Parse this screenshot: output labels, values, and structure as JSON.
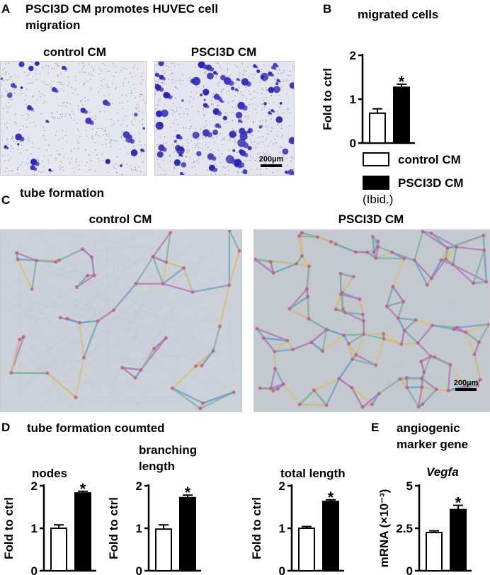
{
  "panelA": {
    "letter": "A",
    "title_line1": "PSCI3D CM promotes HUVEC cell",
    "title_line2": "migration",
    "left_label": "control CM",
    "right_label": "PSCI3D CM",
    "scale_text": "200µm"
  },
  "panelB": {
    "letter": "B",
    "title": "migrated cells",
    "legend": {
      "control": "control CM",
      "treated": "PSCI3D CM",
      "note": "(Ibid.)"
    }
  },
  "panelC": {
    "letter": "C",
    "title": "tube formation",
    "left_label": "control CM",
    "right_label": "PSCI3D CM",
    "scale_text": "200µm"
  },
  "panelD": {
    "letter": "D",
    "title": "tube formation coumted"
  },
  "panelE": {
    "letter": "E",
    "title_line1": "angiogenic",
    "title_line2": "marker gene"
  },
  "colors": {
    "control_fill": "#ffffff",
    "treated_fill": "#000000"
  },
  "chart_data": [
    {
      "id": "migrated",
      "type": "bar",
      "title": "",
      "ylabel": "Fold to ctrl",
      "categories": [
        "control CM",
        "PSCI3D CM"
      ],
      "values": [
        0.68,
        1.27
      ],
      "errors": [
        0.1,
        0.07
      ],
      "ylim": [
        0,
        2
      ],
      "yticks": [
        "0",
        "1",
        "2"
      ],
      "star": "*"
    },
    {
      "id": "nodes",
      "type": "bar",
      "title": "nodes",
      "ylabel": "Fold to ctrl",
      "categories": [
        "control CM",
        "PSCI3D CM"
      ],
      "values": [
        1.0,
        1.83
      ],
      "errors": [
        0.08,
        0.04
      ],
      "ylim": [
        0,
        2
      ],
      "yticks": [
        "0",
        "1",
        "2"
      ],
      "star": "*"
    },
    {
      "id": "branching",
      "type": "bar",
      "title": "branching length",
      "title_line1": "branching",
      "title_line2": "length",
      "ylabel": "Fold to ctrl",
      "categories": [
        "control CM",
        "PSCI3D CM"
      ],
      "values": [
        0.98,
        1.72
      ],
      "errors": [
        0.1,
        0.06
      ],
      "ylim": [
        0,
        2
      ],
      "yticks": [
        "0",
        "1",
        "2"
      ],
      "star": "*"
    },
    {
      "id": "total",
      "type": "bar",
      "title": "total length",
      "ylabel": "Fold to ctrl",
      "categories": [
        "control CM",
        "PSCI3D CM"
      ],
      "values": [
        1.0,
        1.63
      ],
      "errors": [
        0.04,
        0.04
      ],
      "ylim": [
        0,
        2
      ],
      "yticks": [
        "0",
        "1",
        "2"
      ],
      "star": "*"
    },
    {
      "id": "vegfa",
      "type": "bar",
      "title": "Vegfa",
      "ylabel": "mRNA (×10⁻³)",
      "categories": [
        "control CM",
        "PSCI3D CM"
      ],
      "values": [
        2.25,
        3.6
      ],
      "errors": [
        0.1,
        0.25
      ],
      "ylim": [
        0,
        5
      ],
      "yticks": [
        "0",
        "2.5",
        "5"
      ],
      "star": "*"
    }
  ]
}
